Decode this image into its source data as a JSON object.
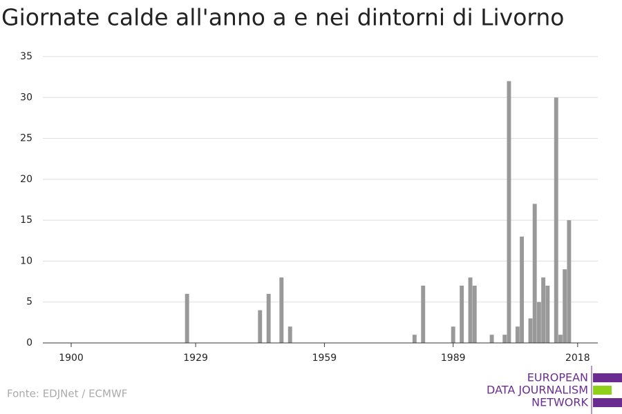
{
  "chart_data": {
    "type": "bar",
    "title": "Giornate calde all'anno a e nei dintorni di Livorno",
    "x": [
      1927,
      1944,
      1946,
      1949,
      1951,
      1980,
      1982,
      1989,
      1991,
      1993,
      1994,
      1998,
      2001,
      2002,
      2004,
      2005,
      2007,
      2008,
      2009,
      2010,
      2011,
      2013,
      2014,
      2015,
      2016
    ],
    "values": [
      6,
      4,
      6,
      8,
      2,
      1,
      7,
      2,
      7,
      8,
      7,
      1,
      1,
      32,
      2,
      13,
      3,
      17,
      5,
      8,
      7,
      30,
      1,
      9,
      15
    ],
    "color": "#999999",
    "xlim": [
      1893.4,
      2022.7
    ],
    "xticks": [
      1900,
      1929,
      1959,
      1989,
      2018
    ],
    "ylim": [
      0,
      35
    ],
    "yticks": [
      0,
      5,
      10,
      15,
      20,
      25,
      30,
      35
    ],
    "grid": true,
    "source": "Fonte: EDJNet / ECMWF"
  },
  "logo": {
    "lines": [
      "EUROPEAN",
      "DATA JOURNALISM",
      "NETWORK"
    ]
  }
}
